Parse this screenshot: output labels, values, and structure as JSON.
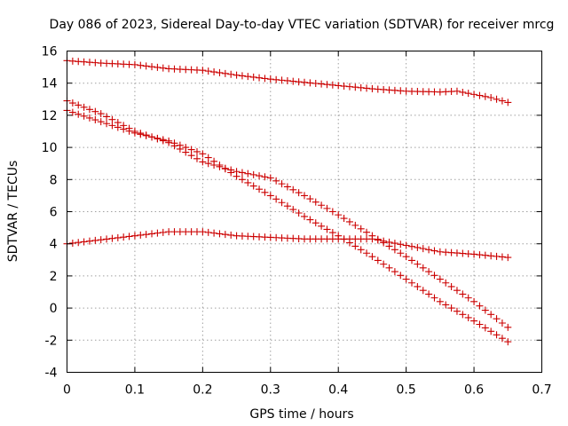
{
  "chart_data": {
    "type": "scatter",
    "title": "Day 086 of 2023, Sidereal Day-to-day VTEC variation (SDTVAR) for receiver mrcg",
    "xlabel": "GPS time / hours",
    "ylabel": "SDTVAR / TECUs",
    "xlim": [
      0,
      0.7
    ],
    "ylim": [
      -4,
      16
    ],
    "xticks": [
      0,
      0.1,
      0.2,
      0.3,
      0.4,
      0.5,
      0.6,
      0.7
    ],
    "yticks": [
      -4,
      -2,
      0,
      2,
      4,
      6,
      8,
      10,
      12,
      14,
      16
    ],
    "xtick_labels": [
      "0",
      "0.1",
      "0.2",
      "0.3",
      "0.4",
      "0.5",
      "0.6",
      "0.7"
    ],
    "ytick_labels": [
      "-4",
      "-2",
      "0",
      "2",
      "4",
      "6",
      "8",
      "10",
      "12",
      "14",
      "16"
    ],
    "grid": true,
    "marker": "+",
    "color": "#cc0000",
    "sample_step": 0.00833,
    "series": [
      {
        "name": "series-1",
        "x": [
          0.0,
          0.05,
          0.1,
          0.15,
          0.2,
          0.25,
          0.3,
          0.35,
          0.4,
          0.45,
          0.5,
          0.55,
          0.575,
          0.6,
          0.625,
          0.65
        ],
        "y": [
          15.4,
          15.25,
          15.15,
          14.9,
          14.8,
          14.5,
          14.25,
          14.05,
          13.85,
          13.65,
          13.5,
          13.45,
          13.5,
          13.3,
          13.1,
          12.8
        ]
      },
      {
        "name": "series-2",
        "x": [
          0.0,
          0.05,
          0.1,
          0.15,
          0.2,
          0.25,
          0.3,
          0.35,
          0.4,
          0.45,
          0.5,
          0.55,
          0.6,
          0.65
        ],
        "y": [
          12.9,
          12.1,
          11.0,
          10.3,
          9.1,
          8.5,
          8.1,
          7.0,
          5.8,
          4.5,
          3.2,
          1.8,
          0.4,
          -1.2
        ]
      },
      {
        "name": "series-3",
        "x": [
          0.0,
          0.05,
          0.1,
          0.15,
          0.2,
          0.25,
          0.3,
          0.35,
          0.4,
          0.45,
          0.5,
          0.55,
          0.6,
          0.65
        ],
        "y": [
          12.3,
          11.6,
          10.9,
          10.4,
          9.6,
          8.2,
          7.0,
          5.7,
          4.5,
          3.2,
          1.8,
          0.4,
          -0.8,
          -2.1
        ]
      },
      {
        "name": "series-4",
        "x": [
          0.0,
          0.05,
          0.1,
          0.15,
          0.2,
          0.25,
          0.3,
          0.35,
          0.4,
          0.45,
          0.5,
          0.55,
          0.6,
          0.65
        ],
        "y": [
          4.0,
          4.25,
          4.5,
          4.75,
          4.75,
          4.5,
          4.4,
          4.3,
          4.3,
          4.3,
          3.9,
          3.5,
          3.35,
          3.15
        ]
      }
    ]
  }
}
